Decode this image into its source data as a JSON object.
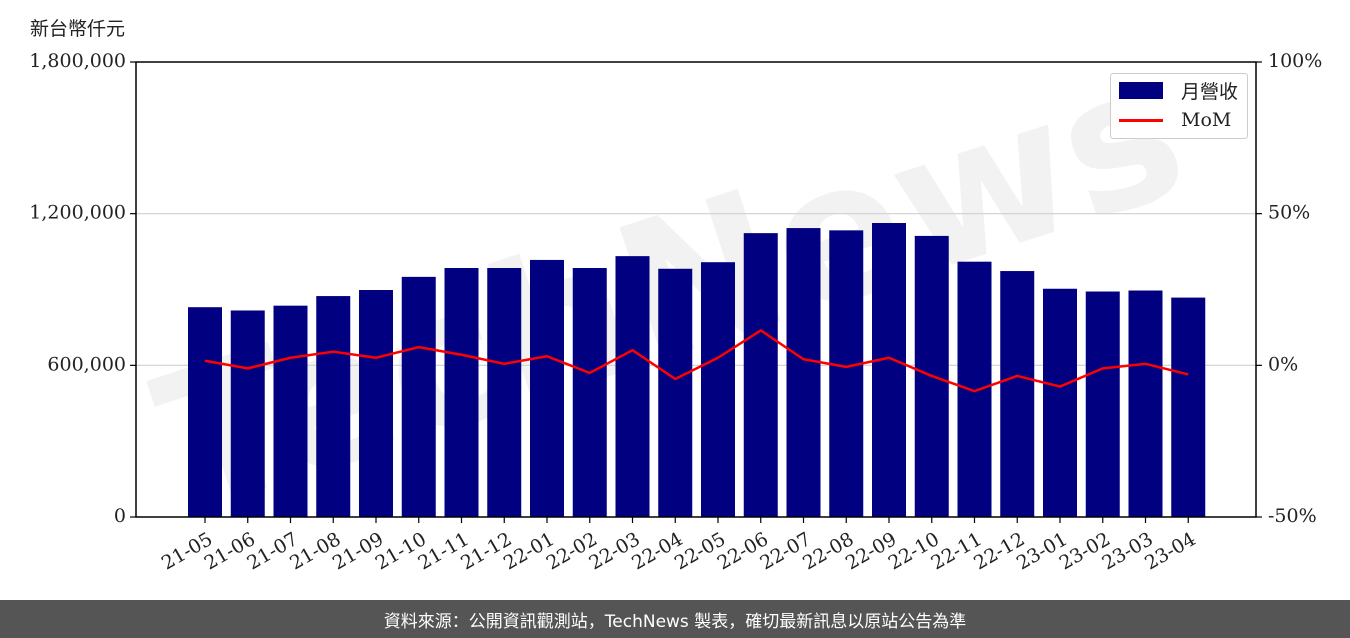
{
  "unit_label": "新台幣仟元",
  "footer": "資料來源：公開資訊觀測站，TechNews 製表，確切最新訊息以原站公告為準",
  "watermark": "TechNews",
  "colors": {
    "bar": "#000080",
    "line": "#ff0000",
    "footer_bg": "#555555"
  },
  "legend": {
    "bar_label": "月營收",
    "line_label": "MoM"
  },
  "chart_data": {
    "type": "bar",
    "categories": [
      "21-05",
      "21-06",
      "21-07",
      "21-08",
      "21-09",
      "21-10",
      "21-11",
      "21-12",
      "22-01",
      "22-02",
      "22-03",
      "22-04",
      "22-05",
      "22-06",
      "22-07",
      "22-08",
      "22-09",
      "22-10",
      "22-11",
      "22-12",
      "23-01",
      "23-02",
      "23-03",
      "23-04"
    ],
    "series": [
      {
        "name": "月營收",
        "type": "bar",
        "axis": "left",
        "values": [
          830000,
          817000,
          836000,
          874000,
          898000,
          950000,
          985000,
          985000,
          1017000,
          985000,
          1032000,
          982000,
          1008000,
          1123000,
          1143000,
          1134000,
          1163000,
          1112000,
          1010000,
          973000,
          903000,
          892000,
          896000,
          868000
        ]
      },
      {
        "name": "MoM",
        "type": "line",
        "axis": "right",
        "values": [
          1.5,
          -1.0,
          2.5,
          4.5,
          2.5,
          6.0,
          3.5,
          0.5,
          3.0,
          -2.5,
          5.0,
          -4.5,
          2.5,
          11.5,
          2.0,
          -0.5,
          2.5,
          -3.5,
          -8.5,
          -3.5,
          -7.0,
          -1.0,
          0.5,
          -3.0
        ]
      }
    ],
    "y_left": {
      "ylim": [
        0,
        1800000
      ],
      "ticks": [
        "0",
        "600,000",
        "1,200,000",
        "1,800,000"
      ],
      "tick_values": [
        0,
        600000,
        1200000,
        1800000
      ]
    },
    "y_right": {
      "ylim": [
        -50,
        100
      ],
      "ticks": [
        "-50%",
        "0%",
        "50%",
        "100%"
      ],
      "tick_values": [
        -50,
        0,
        50,
        100
      ]
    },
    "grid": "horizontal",
    "legend_position": "top-right"
  }
}
